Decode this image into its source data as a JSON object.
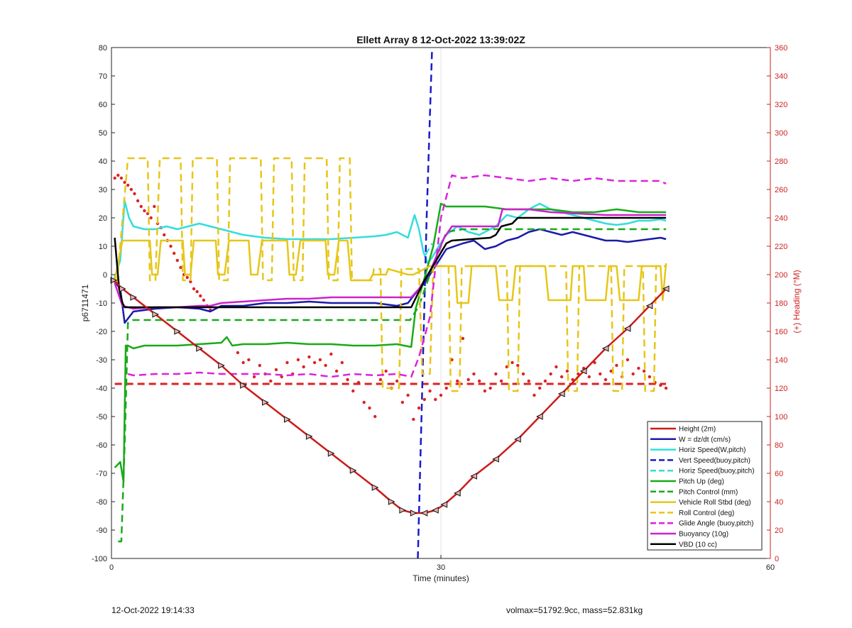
{
  "chart_data": {
    "type": "line",
    "title": "Ellett Array 8 12-Oct-2022 13:39:02Z",
    "xlabel": "Time (minutes)",
    "ylabel": "p6711471",
    "y2label": "(+) Heading (°M)",
    "xlim": [
      0,
      60
    ],
    "ylim": [
      -100,
      80
    ],
    "y2lim": [
      0,
      360
    ],
    "x_ticks": [
      0,
      30,
      60
    ],
    "y_ticks": [
      -100,
      -90,
      -80,
      -70,
      -60,
      -50,
      -40,
      -30,
      -20,
      -10,
      0,
      10,
      20,
      30,
      40,
      50,
      60,
      70,
      80
    ],
    "y2_ticks": [
      0,
      20,
      40,
      60,
      80,
      100,
      120,
      140,
      160,
      180,
      200,
      220,
      240,
      260,
      280,
      300,
      320,
      340,
      360
    ],
    "grid": "vertical-only",
    "legend_position": "lower-right",
    "series": [
      {
        "name": "Height (2m)",
        "color": "#cc1a1a",
        "style": "solid",
        "x": [
          0.2,
          1.0,
          2.0,
          4.0,
          6.0,
          8.0,
          10.0,
          12.0,
          14.0,
          16.0,
          18.0,
          20.0,
          22.0,
          24.0,
          25.5,
          26.5,
          27.5,
          28.5,
          29.5,
          30.3,
          31.5,
          33.0,
          35.0,
          37.0,
          39.0,
          41.0,
          43.0,
          45.0,
          47.0,
          49.0,
          50.5
        ],
        "y": [
          -2,
          -5,
          -8,
          -14,
          -20,
          -26,
          -32,
          -39,
          -45,
          -51,
          -57,
          -63,
          -69,
          -75,
          -80,
          -83,
          -84,
          -84,
          -83,
          -81,
          -77,
          -71,
          -65,
          -58,
          -50,
          -42,
          -34,
          -26,
          -19,
          -11,
          -5
        ]
      },
      {
        "name": "W = dz/dt (cm/s)",
        "color": "#1a1aaa",
        "style": "solid",
        "x": [
          0.2,
          0.8,
          1.2,
          2,
          4,
          6,
          8,
          9,
          10,
          12,
          14,
          16,
          18,
          20,
          22,
          24,
          25,
          26,
          27,
          27.6,
          28.5,
          29.5,
          30.5,
          32,
          33,
          34,
          35,
          36,
          37,
          38,
          39,
          40,
          41,
          42,
          43,
          44,
          45,
          46,
          47,
          48,
          49,
          50,
          50.5
        ],
        "y": [
          -2,
          -5,
          -17,
          -13,
          -12,
          -11.5,
          -12,
          -13,
          -11,
          -11,
          -10,
          -10,
          -9.5,
          -10,
          -10,
          -10,
          -10.5,
          -11,
          -10,
          -7,
          -3,
          3,
          9,
          11,
          12,
          9,
          10,
          12,
          13,
          15,
          16,
          15,
          14,
          15,
          14,
          13,
          12,
          12,
          11.5,
          12,
          12.5,
          13,
          12.5
        ]
      },
      {
        "name": "Horiz Speed(W,pitch)",
        "color": "#33dddd",
        "style": "solid",
        "x": [
          0.2,
          0.8,
          1.2,
          1.6,
          2,
          3,
          4,
          5,
          6,
          7,
          8,
          9,
          10,
          12,
          14,
          16,
          18,
          20,
          22,
          24,
          25,
          26,
          27,
          27.6,
          28,
          28.4,
          28.8,
          29.2,
          29.8,
          30.5,
          31.5,
          32.5,
          33.5,
          35,
          36,
          37,
          38,
          39,
          40,
          41,
          42,
          43,
          44,
          45,
          46,
          47,
          48,
          49,
          50,
          50.5
        ],
        "y": [
          -2,
          5,
          26,
          20,
          17,
          16,
          16,
          17,
          16,
          17,
          18,
          17,
          16,
          14,
          13,
          12.5,
          12.5,
          12.5,
          13,
          13.5,
          14,
          15,
          13,
          21,
          16,
          8,
          4,
          6,
          10,
          14,
          17,
          15,
          14,
          17,
          21,
          20,
          23,
          25,
          23,
          22,
          21,
          20,
          19,
          18,
          17.5,
          18,
          19,
          19,
          19.5,
          19
        ]
      },
      {
        "name": "Vert Speed(buoy,pitch)",
        "color": "#1a1acc",
        "style": "dashed",
        "x": [
          27.9,
          28.3,
          28.7,
          29.2
        ],
        "y": [
          -100,
          -40,
          20,
          80
        ]
      },
      {
        "name": "Horiz Speed(buoy,pitch)",
        "color": "#33dddd",
        "style": "dashed",
        "x": [
          28.6,
          29.2
        ],
        "y": [
          7,
          11
        ]
      },
      {
        "name": "Pitch Up (deg)",
        "color": "#19aa19",
        "style": "solid",
        "x": [
          0.3,
          0.8,
          1.1,
          1.3,
          1.5,
          2,
          3,
          4,
          6,
          8,
          10,
          10.5,
          11,
          12,
          14,
          16,
          18,
          20,
          22,
          24,
          26,
          27.3,
          27.7,
          28.6,
          29.3,
          30,
          30.5,
          32,
          34,
          36,
          38,
          40,
          42,
          44,
          46,
          48,
          50,
          50.5
        ],
        "y": [
          -68,
          -66,
          -73,
          -25,
          -25,
          -26,
          -25,
          -25,
          -25,
          -24.5,
          -24,
          -22,
          -25,
          -24.5,
          -24.5,
          -24,
          -24.5,
          -24.5,
          -25,
          -25,
          -24.5,
          -25.5,
          -12,
          0,
          10,
          25,
          24,
          24,
          24,
          23,
          23,
          23,
          22,
          22,
          23,
          22,
          22,
          22
        ]
      },
      {
        "name": "Pitch Control (mm)",
        "color": "#19aa19",
        "style": "dashed",
        "x": [
          0.6,
          0.9,
          1.2,
          1.5,
          2,
          5,
          10,
          15,
          20,
          25,
          27.2,
          28,
          29,
          30,
          30.5,
          32,
          35,
          40,
          45,
          50,
          50.5
        ],
        "y": [
          -94,
          -94,
          -60,
          -17,
          -16,
          -16,
          -16,
          -16,
          -16,
          -16,
          -16,
          -11,
          0,
          10,
          15,
          16,
          16,
          16,
          16,
          16,
          16
        ]
      },
      {
        "name": "Vehicle Roll Stbd (deg)",
        "color": "#e6c619",
        "style": "solid",
        "x": [
          0.3,
          1.0,
          1.5,
          3.5,
          3.7,
          4.2,
          4.5,
          6.5,
          6.7,
          7.2,
          7.5,
          9.5,
          9.7,
          10.3,
          10.7,
          12.5,
          12.7,
          13.3,
          13.7,
          16,
          16.2,
          16.8,
          17.2,
          19.5,
          19.7,
          20.3,
          20.7,
          21.5,
          21.8,
          23.5,
          23.8,
          25,
          25.2,
          27,
          27.5,
          28.5,
          29,
          29.5,
          30.5,
          31.3,
          31.5,
          32.5,
          32.8,
          35,
          35.3,
          36.5,
          36.8,
          39.5,
          39.8,
          41.8,
          42,
          43,
          43.2,
          45,
          45.3,
          46,
          46.3,
          48,
          48.3,
          50,
          50.2,
          50.5
        ],
        "y": [
          -2,
          12,
          12,
          12,
          0,
          0,
          12,
          12,
          0,
          0,
          12,
          12,
          0,
          0,
          12,
          12,
          0,
          0,
          12,
          12,
          0,
          0,
          12,
          12,
          0,
          0,
          12,
          12,
          -2,
          -2,
          0,
          0,
          2,
          0,
          0,
          2,
          3,
          3,
          3,
          3,
          -10,
          -10,
          3,
          3,
          -9,
          -9,
          3,
          3,
          -9,
          -9,
          3,
          3,
          -9,
          -9,
          3,
          3,
          -9,
          -9,
          3,
          3,
          -9,
          4
        ]
      },
      {
        "name": "Roll Control (deg)",
        "color": "#e6c619",
        "style": "dashed",
        "x": [
          0.5,
          1.5,
          2,
          3.3,
          3.5,
          4,
          4.4,
          6.3,
          6.5,
          7.2,
          7.4,
          9.6,
          9.8,
          10.6,
          10.8,
          13.6,
          13.8,
          14.6,
          14.8,
          16.4,
          16.6,
          17.4,
          17.6,
          19.6,
          19.8,
          20.6,
          20.8,
          21.7,
          21.9,
          23.7,
          23.9,
          24.5,
          24.7,
          26.2,
          26.4,
          28,
          28.3,
          29,
          29.3,
          30.7,
          30.9,
          31.7,
          31.9,
          36,
          36.2,
          37,
          37.2,
          41.4,
          41.6,
          42.4,
          42.6,
          45.5,
          45.7,
          46.5,
          46.7,
          48.4,
          48.6,
          49.4,
          49.6,
          50.5
        ],
        "y": [
          -3,
          41,
          41,
          41,
          -2,
          -2,
          41,
          41,
          -2,
          -2,
          41,
          41,
          -2,
          -2,
          41,
          41,
          -2,
          -2,
          41,
          41,
          -2,
          -2,
          41,
          41,
          -2,
          -2,
          41,
          41,
          -2,
          -2,
          2,
          2,
          -40,
          -40,
          2,
          2,
          -35,
          -35,
          3,
          3,
          -41,
          -41,
          3,
          3,
          -41,
          -41,
          3,
          3,
          -41,
          -41,
          3,
          3,
          -41,
          -41,
          3,
          3,
          -41,
          -41,
          3,
          3
        ]
      },
      {
        "name": "Glide Angle (buoy,pitch)",
        "color": "#dd22dd",
        "style": "dashed",
        "x": [
          1.5,
          2,
          4,
          6,
          8,
          10,
          12,
          14,
          16,
          18,
          20,
          22,
          24,
          26,
          27.3,
          28,
          29,
          30,
          31,
          32,
          34,
          36,
          38,
          40,
          42,
          44,
          46,
          48,
          50,
          50.5
        ],
        "y": [
          -35,
          -35.5,
          -35,
          -35,
          -34.5,
          -35,
          -35,
          -35,
          -35.5,
          -35,
          -36,
          -35,
          -35.5,
          -35,
          -36,
          -29,
          -15,
          20,
          35,
          34,
          35,
          34,
          33,
          34,
          33,
          34,
          33,
          33,
          33,
          32
        ]
      },
      {
        "name": "Buoyancy (10g)",
        "color": "#cc22cc",
        "style": "solid",
        "x": [
          0.3,
          1,
          2,
          4,
          6,
          8,
          9,
          10,
          12,
          14,
          16,
          18,
          20,
          22,
          24,
          26,
          27.3,
          28,
          29,
          30.3,
          31,
          34,
          35.2,
          35.6,
          38,
          40,
          45,
          50,
          50.5
        ],
        "y": [
          -3,
          -11,
          -12,
          -11.5,
          -11.5,
          -11,
          -11,
          -10,
          -9.5,
          -9,
          -8.5,
          -8.5,
          -8,
          -8,
          -8,
          -8,
          -8,
          -5,
          1,
          13,
          17,
          17,
          17,
          23,
          23,
          22,
          21,
          21,
          21
        ]
      },
      {
        "name": "VBD (10 cc)",
        "color": "#000000",
        "style": "solid",
        "x": [
          0.3,
          0.7,
          1.0,
          1.2,
          5,
          10,
          15,
          20,
          25,
          27.3,
          28.5,
          30.5,
          31,
          34.5,
          35,
          35.5,
          36.5,
          37,
          40,
          45,
          50,
          50.5
        ],
        "y": [
          13,
          -5,
          -10,
          -11.5,
          -11.5,
          -11.5,
          -11.5,
          -11.5,
          -11.5,
          -11.5,
          -2,
          11,
          12,
          13,
          14,
          17,
          18,
          20,
          20,
          20,
          20,
          20
        ]
      }
    ],
    "heading_series": {
      "name": "Heading",
      "color": "#dd2222",
      "axis": "right",
      "x": [
        0.3,
        0.6,
        0.9,
        1.2,
        1.5,
        1.8,
        2.1,
        2.4,
        2.7,
        3.0,
        3.3,
        3.6,
        3.9,
        4.2,
        4.5,
        4.8,
        5.1,
        5.4,
        5.7,
        6.0,
        6.3,
        6.6,
        6.9,
        7.2,
        7.5,
        7.8,
        8.1,
        8.4,
        8.7,
        9.0,
        11.5,
        12.0,
        12.5,
        13.0,
        13.5,
        14.0,
        14.5,
        15.0,
        15.5,
        16.0,
        16.5,
        17.0,
        17.5,
        18.0,
        18.5,
        19.0,
        19.5,
        20.0,
        20.5,
        21.0,
        21.5,
        22.0,
        22.5,
        23.0,
        23.5,
        24.0,
        24.5,
        25.0,
        25.5,
        26.0,
        26.5,
        27.0,
        27.5,
        28.0,
        28.5,
        29.0,
        29.5,
        30.0,
        30.5,
        31.0,
        31.5,
        32.0,
        32.5,
        33.0,
        33.5,
        34.0,
        34.5,
        35.0,
        35.5,
        36.0,
        36.5,
        37.0,
        37.5,
        38.0,
        38.5,
        39.0,
        39.5,
        40.0,
        40.5,
        41.0,
        41.5,
        42.0,
        42.5,
        43.0,
        43.5,
        44.0,
        44.5,
        45.0,
        45.5,
        46.0,
        46.5,
        47.0,
        47.5,
        48.0,
        48.5,
        49.0,
        49.5,
        50.0,
        50.5
      ],
      "y": [
        268,
        270,
        268,
        265,
        263,
        260,
        257,
        252,
        248,
        245,
        243,
        240,
        248,
        236,
        233,
        228,
        224,
        220,
        215,
        210,
        205,
        200,
        198,
        195,
        190,
        188,
        185,
        182,
        178,
        175,
        145,
        138,
        140,
        128,
        136,
        130,
        125,
        133,
        128,
        138,
        130,
        140,
        135,
        142,
        138,
        140,
        136,
        144,
        132,
        138,
        126,
        118,
        124,
        110,
        106,
        100,
        126,
        132,
        120,
        125,
        110,
        115,
        98,
        106,
        112,
        118,
        112,
        115,
        120,
        140,
        125,
        155,
        126,
        130,
        125,
        118,
        120,
        130,
        125,
        135,
        138,
        136,
        130,
        125,
        115,
        120,
        125,
        130,
        135,
        128,
        132,
        126,
        130,
        134,
        128,
        138,
        130,
        126,
        132,
        136,
        128,
        140,
        130,
        134,
        132,
        128,
        124,
        122,
        120
      ],
      "reference_line": 123
    },
    "triangle_markers_on": "Height (2m)",
    "legend": [
      "Height (2m)",
      "W = dz/dt (cm/s)",
      "Horiz Speed(W,pitch)",
      "Vert Speed(buoy,pitch)",
      "Horiz Speed(buoy,pitch)",
      "Pitch Up (deg)",
      "Pitch Control (mm)",
      "Vehicle Roll Stbd (deg)",
      "Roll Control (deg)",
      "Glide Angle (buoy,pitch)",
      "Buoyancy (10g)",
      "VBD (10 cc)"
    ]
  },
  "footer": {
    "left": "12-Oct-2022 19:14:33",
    "right": "volmax=51792.9cc, mass=52.831kg"
  },
  "colors": {
    "grid": "#e3e3e3",
    "axis": "#222222",
    "right_axis": "#cc2222",
    "reference": "#dd2222"
  }
}
